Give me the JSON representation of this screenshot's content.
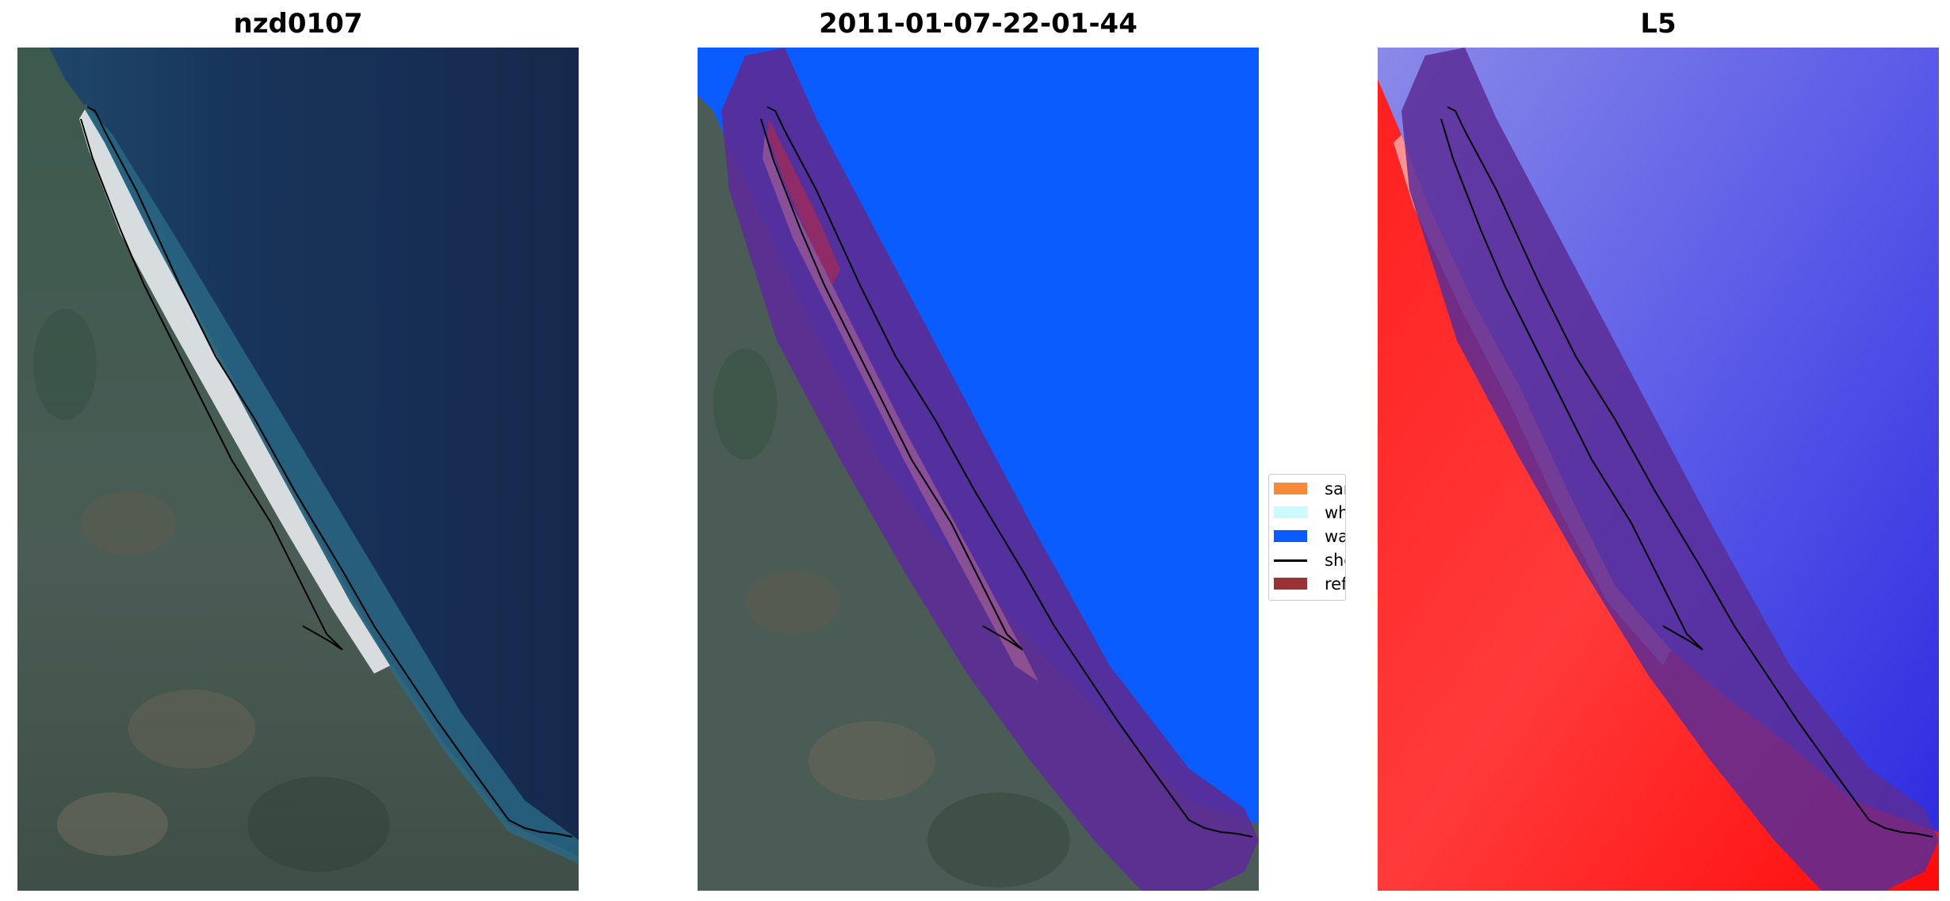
{
  "panels": [
    {
      "title": "nzd0107"
    },
    {
      "title": "2011-01-07-22-01-44"
    },
    {
      "title": "L5"
    }
  ],
  "legend": {
    "items": [
      {
        "label": "sand",
        "color": "#f58a3a",
        "kind": "patch"
      },
      {
        "label": "whitewater",
        "color": "#ccfbff",
        "kind": "patch"
      },
      {
        "label": "water",
        "color": "#0a5cff",
        "kind": "patch"
      },
      {
        "label": "shoreline",
        "color": "#000000",
        "kind": "line"
      },
      {
        "label": "reference shoreline buffer",
        "color": "#993333",
        "kind": "patch"
      }
    ]
  },
  "colors": {
    "ocean_deep": "#1a2d52",
    "ocean_shallow": "#1f5b7a",
    "land": "#3a5a4a",
    "water_class": "#0a5cff",
    "buffer_overlay": "#5b2d96",
    "index_land": "#ff1010",
    "index_water": "#3a3af0"
  }
}
